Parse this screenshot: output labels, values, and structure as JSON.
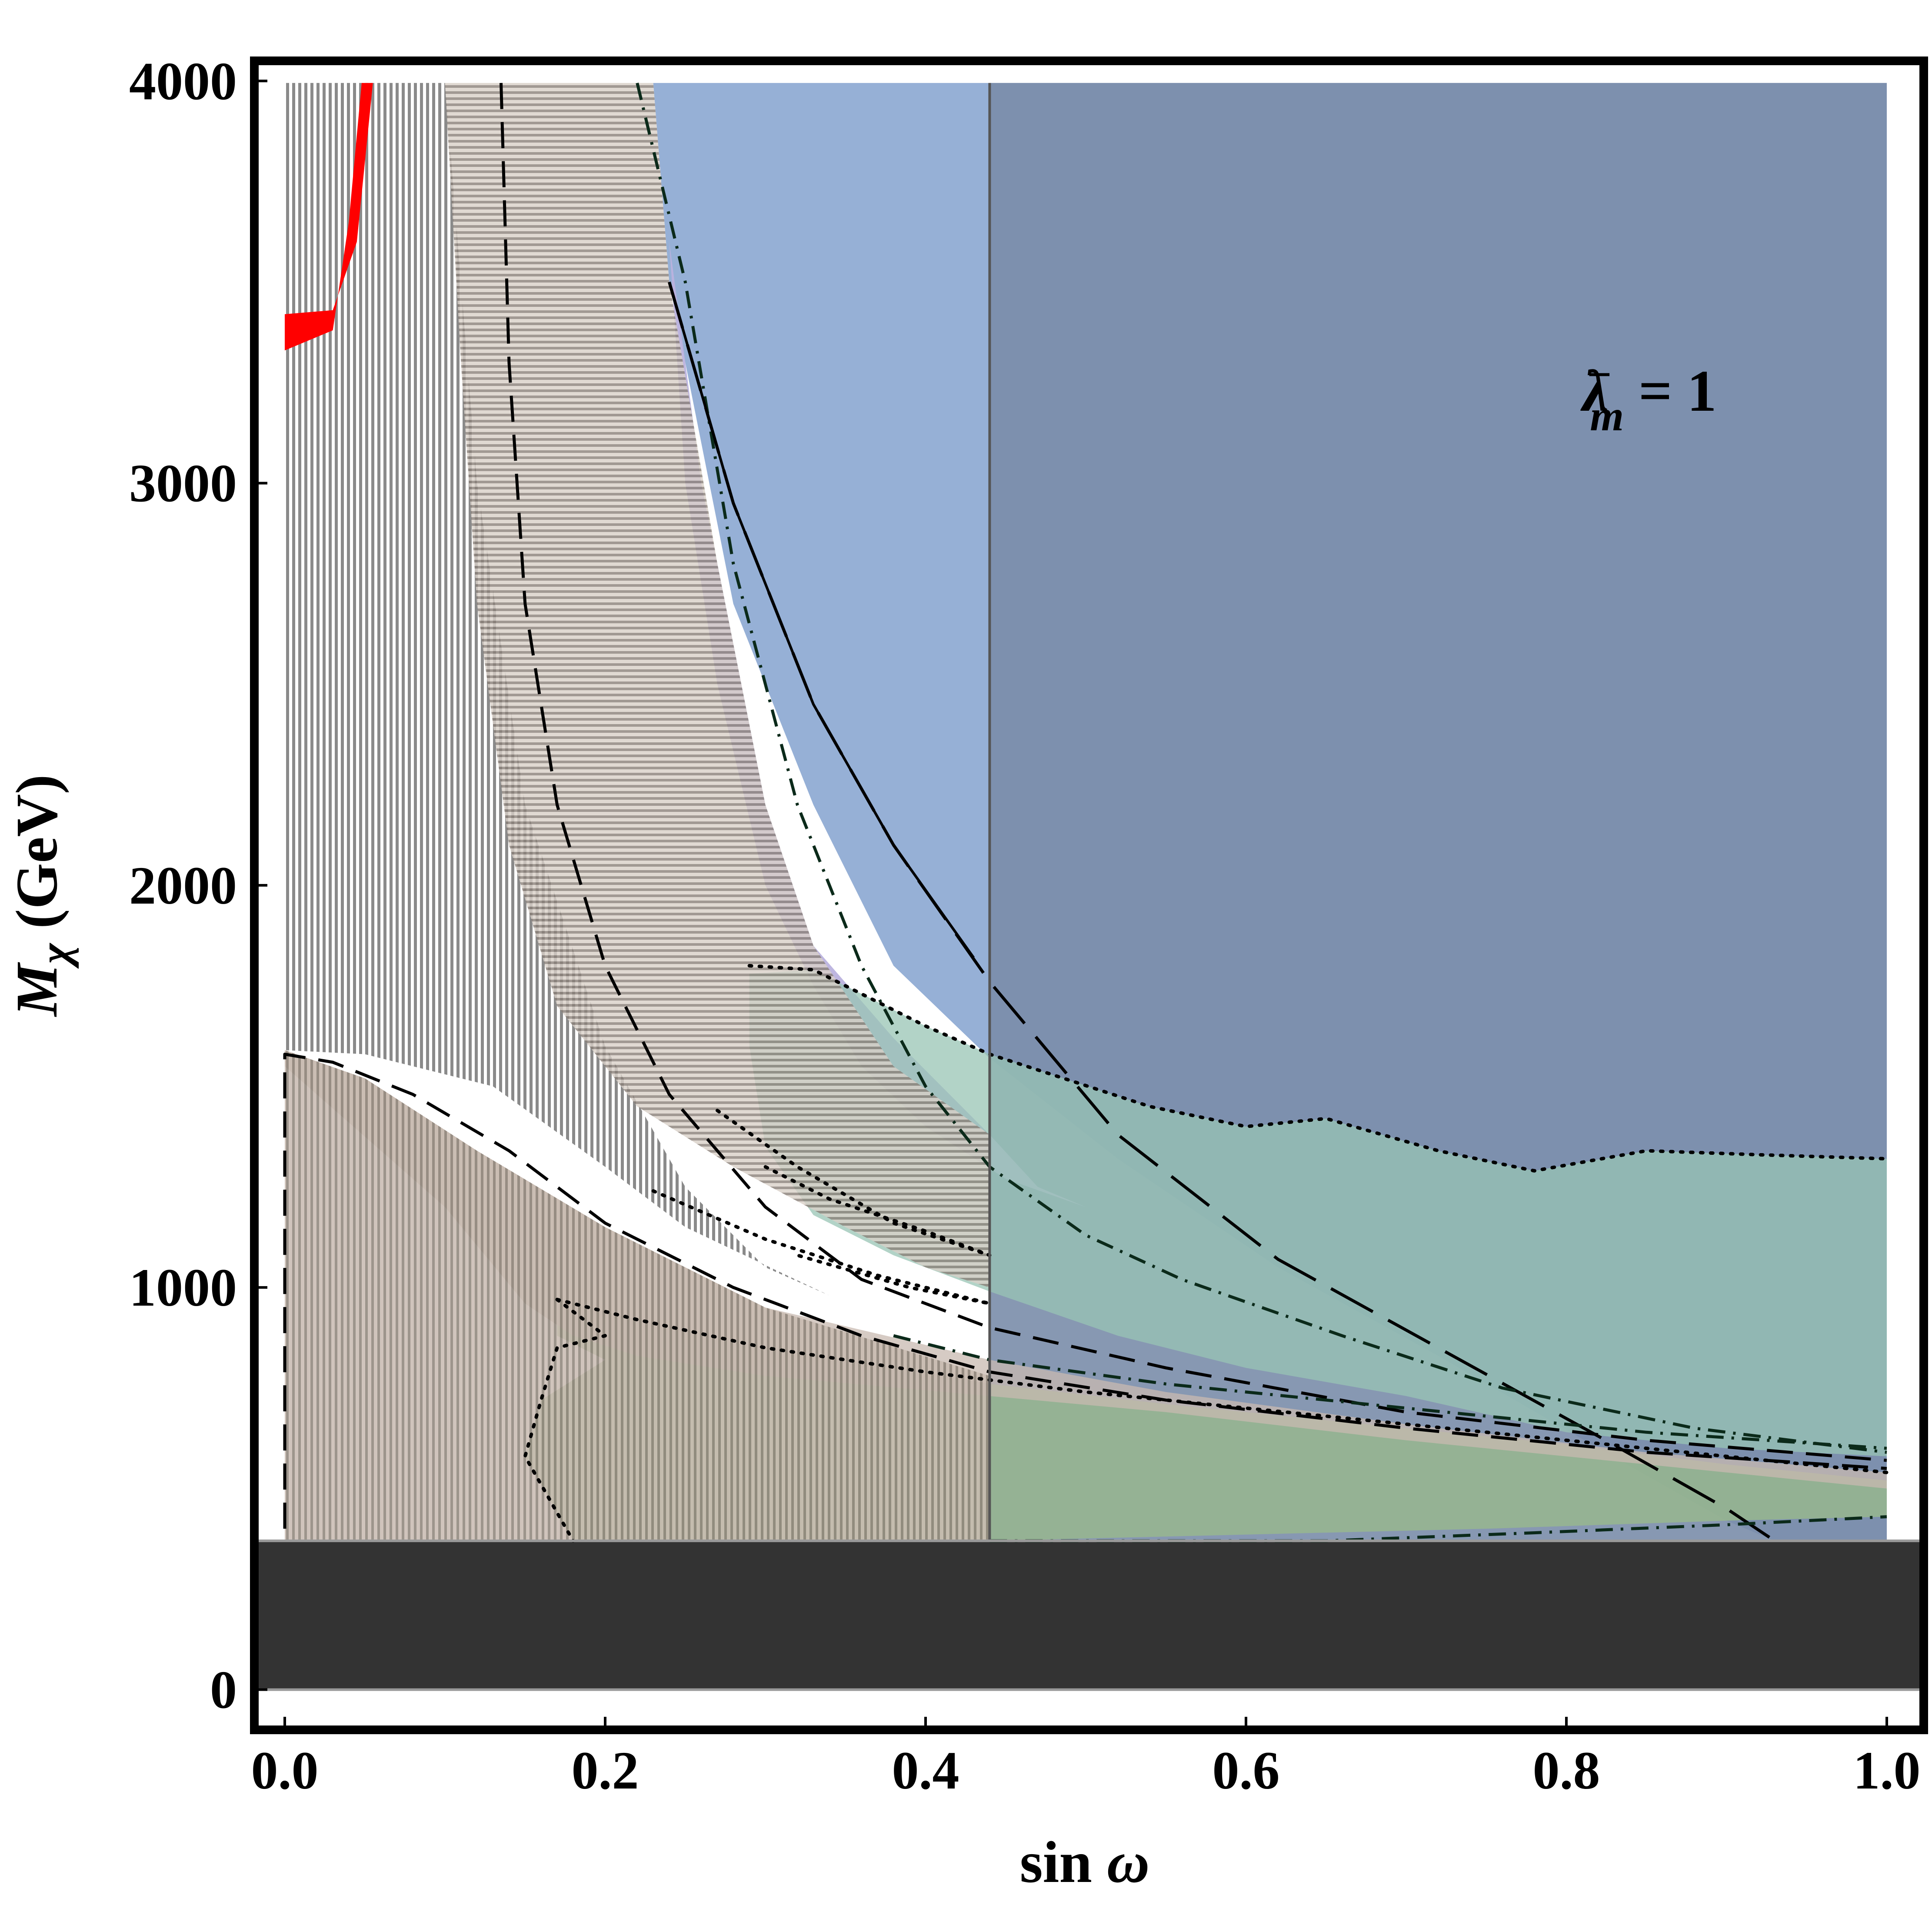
{
  "chart_data": {
    "type": "area",
    "title": "",
    "xlabel": {
      "main": "sin ",
      "symbol": "ω"
    },
    "ylabel": {
      "italic": "M",
      "sub": "χ",
      "unit": " (GeV)"
    },
    "xlim": [
      0,
      1
    ],
    "ylim": [
      -100,
      4050
    ],
    "grid": false,
    "legend": "none",
    "x_ticks": [
      {
        "value": 0.0,
        "label": "0.0"
      },
      {
        "value": 0.2,
        "label": "0.2"
      },
      {
        "value": 0.4,
        "label": "0.4"
      },
      {
        "value": 0.6,
        "label": "0.6"
      },
      {
        "value": 0.8,
        "label": "0.8"
      },
      {
        "value": 1.0,
        "label": "1.0"
      }
    ],
    "y_ticks": [
      {
        "value": 0,
        "label": "0"
      },
      {
        "value": 1000,
        "label": "1000"
      },
      {
        "value": 2000,
        "label": "2000"
      },
      {
        "value": 3000,
        "label": "3000"
      },
      {
        "value": 4000,
        "label": "4000"
      }
    ],
    "annotation": {
      "lambda": "λ",
      "sup": "−",
      "sub": "m",
      "rest": " = 1",
      "x": 0.81,
      "y": 3180
    },
    "colors": {
      "blue": "#96b0d6",
      "dark_blue": "#7a8daa",
      "purple": "#bbb2de",
      "teal": "#98c4b4",
      "green": "#99b98c",
      "dark_green": "#5f9d89",
      "tan": "#c8bab0",
      "grey_hatch": "#8a8a8a",
      "black_band": "#333333",
      "red": "#ff0000"
    },
    "series": [
      {
        "style": "black-band",
        "region": {
          "x": [
            0,
            1
          ],
          "y": [
            0,
            370
          ]
        }
      },
      {
        "style": "blue-region",
        "polygon": [
          [
            0.23,
            3995
          ],
          [
            0.24,
            3500
          ],
          [
            0.28,
            2700
          ],
          [
            0.33,
            2200
          ],
          [
            0.38,
            1800
          ],
          [
            0.44,
            1570
          ],
          [
            0.52,
            1320
          ],
          [
            0.62,
            1050
          ],
          [
            0.72,
            830
          ],
          [
            0.82,
            600
          ],
          [
            0.9,
            420
          ],
          [
            0.93,
            370
          ],
          [
            1.0,
            370
          ],
          [
            1.0,
            3995
          ]
        ]
      },
      {
        "style": "vertical-band",
        "region": {
          "x": [
            0.44,
            1.0
          ],
          "y": [
            370,
            3995
          ]
        }
      },
      {
        "style": "purple-region",
        "polygon": [
          [
            0.24,
            3600
          ],
          [
            0.26,
            3000
          ],
          [
            0.3,
            2200
          ],
          [
            0.33,
            1850
          ],
          [
            0.38,
            1620
          ],
          [
            0.44,
            1380
          ],
          [
            0.47,
            1250
          ],
          [
            0.5,
            1200
          ],
          [
            0.45,
            1270
          ],
          [
            0.4,
            1400
          ],
          [
            0.36,
            1550
          ],
          [
            0.33,
            1750
          ],
          [
            0.3,
            2000
          ],
          [
            0.27,
            2500
          ],
          [
            0.25,
            3000
          ]
        ]
      },
      {
        "style": "teal-region",
        "polygon": [
          [
            0.33,
            1790
          ],
          [
            0.4,
            1650
          ],
          [
            0.44,
            1580
          ],
          [
            0.54,
            1450
          ],
          [
            0.6,
            1400
          ],
          [
            0.65,
            1420
          ],
          [
            0.72,
            1340
          ],
          [
            0.78,
            1290
          ],
          [
            0.85,
            1340
          ],
          [
            0.92,
            1330
          ],
          [
            1.0,
            1320
          ],
          [
            1.0,
            580
          ],
          [
            0.9,
            600
          ],
          [
            0.8,
            640
          ],
          [
            0.7,
            730
          ],
          [
            0.6,
            800
          ],
          [
            0.52,
            880
          ],
          [
            0.44,
            990
          ],
          [
            0.38,
            1080
          ],
          [
            0.33,
            1180
          ],
          [
            0.3,
            1350
          ],
          [
            0.29,
            1600
          ],
          [
            0.29,
            1780
          ]
        ]
      },
      {
        "style": "green-region",
        "polygon": [
          [
            0.17,
            970
          ],
          [
            0.22,
            920
          ],
          [
            0.3,
            850
          ],
          [
            0.4,
            790
          ],
          [
            0.44,
            760
          ],
          [
            0.55,
            710
          ],
          [
            0.7,
            650
          ],
          [
            0.8,
            610
          ],
          [
            0.9,
            560
          ],
          [
            1.0,
            520
          ],
          [
            1.0,
            430
          ],
          [
            0.9,
            420
          ],
          [
            0.75,
            400
          ],
          [
            0.44,
            370
          ],
          [
            0.18,
            370
          ],
          [
            0.15,
            580
          ],
          [
            0.16,
            720
          ],
          [
            0.2,
            820
          ],
          [
            0.17,
            880
          ]
        ]
      },
      {
        "style": "tan-region",
        "polygon": [
          [
            0.0,
            1590
          ],
          [
            0.05,
            1520
          ],
          [
            0.12,
            1340
          ],
          [
            0.2,
            1150
          ],
          [
            0.3,
            950
          ],
          [
            0.44,
            820
          ],
          [
            0.55,
            740
          ],
          [
            0.7,
            660
          ],
          [
            0.85,
            590
          ],
          [
            1.0,
            540
          ],
          [
            1.0,
            500
          ],
          [
            0.85,
            560
          ],
          [
            0.7,
            620
          ],
          [
            0.55,
            690
          ],
          [
            0.44,
            730
          ],
          [
            0.3,
            780
          ],
          [
            0.22,
            830
          ],
          [
            0.18,
            880
          ],
          [
            0.15,
            960
          ],
          [
            0.1,
            1200
          ],
          [
            0.0,
            1550
          ]
        ]
      },
      {
        "style": "tan-hatch",
        "polygon": [
          [
            0.0,
            1590
          ],
          [
            0.05,
            1520
          ],
          [
            0.12,
            1340
          ],
          [
            0.2,
            1150
          ],
          [
            0.3,
            950
          ],
          [
            0.44,
            780
          ],
          [
            0.44,
            370
          ],
          [
            0.0,
            370
          ]
        ]
      },
      {
        "style": "grey-hatch",
        "polygon": [
          [
            0.0,
            3995
          ],
          [
            0.1,
            3995
          ],
          [
            0.12,
            3000
          ],
          [
            0.15,
            2200
          ],
          [
            0.2,
            1600
          ],
          [
            0.25,
            1250
          ],
          [
            0.3,
            1050
          ],
          [
            0.34,
            980
          ],
          [
            0.25,
            1150
          ],
          [
            0.2,
            1300
          ],
          [
            0.13,
            1500
          ],
          [
            0.05,
            1580
          ],
          [
            0.0,
            1590
          ]
        ]
      },
      {
        "style": "tan-hatch-mid",
        "polygon": [
          [
            0.1,
            3995
          ],
          [
            0.23,
            3995
          ],
          [
            0.24,
            3500
          ],
          [
            0.27,
            2800
          ],
          [
            0.3,
            2200
          ],
          [
            0.33,
            1850
          ],
          [
            0.38,
            1550
          ],
          [
            0.44,
            1380
          ],
          [
            0.44,
            1000
          ],
          [
            0.4,
            1050
          ],
          [
            0.35,
            1150
          ],
          [
            0.28,
            1300
          ],
          [
            0.22,
            1450
          ],
          [
            0.17,
            1700
          ],
          [
            0.14,
            2100
          ],
          [
            0.12,
            2700
          ],
          [
            0.11,
            3300
          ]
        ]
      },
      {
        "style": "red-band",
        "polygon": [
          [
            0.0,
            3420
          ],
          [
            0.03,
            3430
          ],
          [
            0.045,
            3600
          ],
          [
            0.055,
            3995
          ],
          [
            0.048,
            3995
          ],
          [
            0.04,
            3650
          ],
          [
            0.03,
            3380
          ],
          [
            0.0,
            3330
          ]
        ]
      },
      {
        "style": "dashed",
        "points": [
          [
            0.135,
            3995
          ],
          [
            0.14,
            3300
          ],
          [
            0.15,
            2700
          ],
          [
            0.17,
            2200
          ],
          [
            0.2,
            1800
          ],
          [
            0.24,
            1480
          ],
          [
            0.3,
            1200
          ],
          [
            0.36,
            1020
          ],
          [
            0.44,
            900
          ],
          [
            0.55,
            800
          ],
          [
            0.7,
            690
          ],
          [
            0.85,
            620
          ],
          [
            1.0,
            570
          ]
        ]
      },
      {
        "style": "dashed",
        "points": [
          [
            0.0,
            400
          ],
          [
            0.0,
            1580
          ],
          [
            0.03,
            1560
          ],
          [
            0.08,
            1480
          ],
          [
            0.14,
            1340
          ],
          [
            0.2,
            1160
          ],
          [
            0.28,
            1000
          ],
          [
            0.36,
            880
          ],
          [
            0.44,
            790
          ],
          [
            0.55,
            720
          ],
          [
            0.7,
            650
          ],
          [
            0.85,
            590
          ],
          [
            1.0,
            550
          ]
        ]
      },
      {
        "style": "long-dash",
        "points": [
          [
            0.24,
            3500
          ],
          [
            0.28,
            2950
          ],
          [
            0.33,
            2450
          ],
          [
            0.38,
            2100
          ],
          [
            0.44,
            1760
          ],
          [
            0.52,
            1380
          ],
          [
            0.62,
            1070
          ],
          [
            0.72,
            850
          ],
          [
            0.82,
            630
          ],
          [
            0.9,
            450
          ],
          [
            0.93,
            370
          ]
        ]
      },
      {
        "style": "dash-dot",
        "points": [
          [
            0.22,
            3995
          ],
          [
            0.25,
            3500
          ],
          [
            0.28,
            2800
          ],
          [
            0.32,
            2200
          ],
          [
            0.36,
            1800
          ],
          [
            0.4,
            1500
          ],
          [
            0.44,
            1300
          ],
          [
            0.5,
            1130
          ],
          [
            0.56,
            1020
          ],
          [
            0.66,
            880
          ],
          [
            0.76,
            750
          ],
          [
            0.88,
            650
          ],
          [
            1.0,
            590
          ]
        ]
      },
      {
        "style": "dash-dot",
        "points": [
          [
            0.38,
            880
          ],
          [
            0.44,
            820
          ],
          [
            0.55,
            760
          ],
          [
            0.7,
            700
          ],
          [
            0.85,
            640
          ],
          [
            1.0,
            600
          ]
        ]
      },
      {
        "style": "dash-dot",
        "points": [
          [
            0.44,
            370
          ],
          [
            0.65,
            370
          ],
          [
            0.78,
            390
          ],
          [
            0.9,
            410
          ],
          [
            1.0,
            430
          ]
        ]
      },
      {
        "style": "dotted",
        "points": [
          [
            0.29,
            1800
          ],
          [
            0.33,
            1790
          ],
          [
            0.4,
            1650
          ],
          [
            0.44,
            1580
          ],
          [
            0.54,
            1450
          ],
          [
            0.6,
            1400
          ],
          [
            0.65,
            1420
          ],
          [
            0.72,
            1340
          ],
          [
            0.78,
            1290
          ],
          [
            0.85,
            1340
          ],
          [
            0.92,
            1330
          ],
          [
            1.0,
            1320
          ]
        ]
      },
      {
        "style": "dotted",
        "points": [
          [
            0.17,
            970
          ],
          [
            0.22,
            920
          ],
          [
            0.3,
            850
          ],
          [
            0.4,
            790
          ],
          [
            0.5,
            740
          ],
          [
            0.6,
            700
          ],
          [
            0.7,
            660
          ],
          [
            0.8,
            620
          ],
          [
            0.9,
            580
          ],
          [
            1.0,
            540
          ]
        ]
      },
      {
        "style": "dotted",
        "points": [
          [
            0.17,
            970
          ],
          [
            0.2,
            880
          ],
          [
            0.17,
            850
          ],
          [
            0.16,
            720
          ],
          [
            0.15,
            580
          ],
          [
            0.18,
            370
          ]
        ]
      },
      {
        "style": "dotted",
        "points": [
          [
            0.27,
            1440
          ],
          [
            0.32,
            1300
          ],
          [
            0.38,
            1160
          ],
          [
            0.44,
            1080
          ],
          [
            0.4,
            1140
          ],
          [
            0.34,
            1220
          ],
          [
            0.3,
            1300
          ]
        ]
      },
      {
        "style": "dotted",
        "points": [
          [
            0.23,
            1240
          ],
          [
            0.3,
            1120
          ],
          [
            0.37,
            1030
          ],
          [
            0.44,
            960
          ],
          [
            0.39,
            1000
          ],
          [
            0.32,
            1080
          ]
        ]
      },
      {
        "style": "solid-curve",
        "points": [
          [
            0.24,
            3500
          ],
          [
            0.28,
            2950
          ],
          [
            0.33,
            2450
          ],
          [
            0.38,
            2100
          ],
          [
            0.43,
            1820
          ]
        ]
      },
      {
        "style": "vertical-line",
        "points": [
          [
            0.44,
            370
          ],
          [
            0.44,
            3995
          ]
        ]
      }
    ]
  }
}
